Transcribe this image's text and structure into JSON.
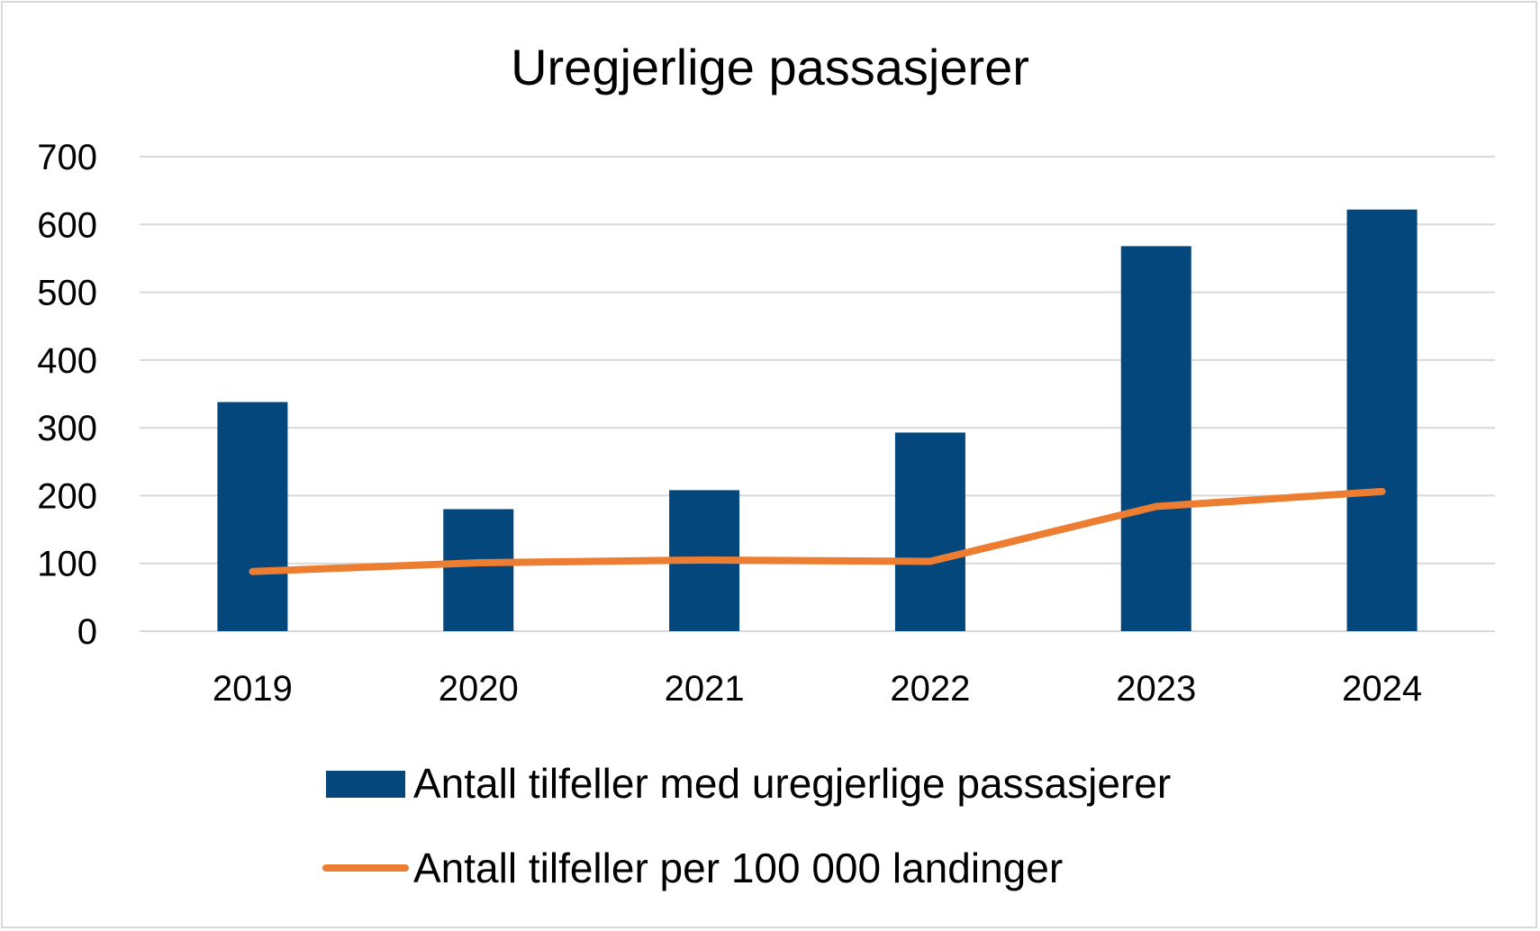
{
  "chart_data": {
    "type": "bar",
    "title": "Uregjerlige passasjerer",
    "categories": [
      "2019",
      "2020",
      "2021",
      "2022",
      "2023",
      "2024"
    ],
    "series": [
      {
        "name": "Antall tilfeller med uregjerlige passasjerer",
        "type": "bar",
        "color": "#03477c",
        "values": [
          338,
          180,
          208,
          293,
          568,
          622
        ]
      },
      {
        "name": "Antall tilfeller per 100 000 landinger",
        "type": "line",
        "color": "#ed7d31",
        "values": [
          88,
          101,
          105,
          103,
          184,
          206
        ]
      }
    ],
    "ylim": [
      0,
      700
    ],
    "yticks": [
      0,
      100,
      200,
      300,
      400,
      500,
      600,
      700
    ],
    "grid": true,
    "legend_position": "bottom",
    "xlabel": "",
    "ylabel": ""
  }
}
